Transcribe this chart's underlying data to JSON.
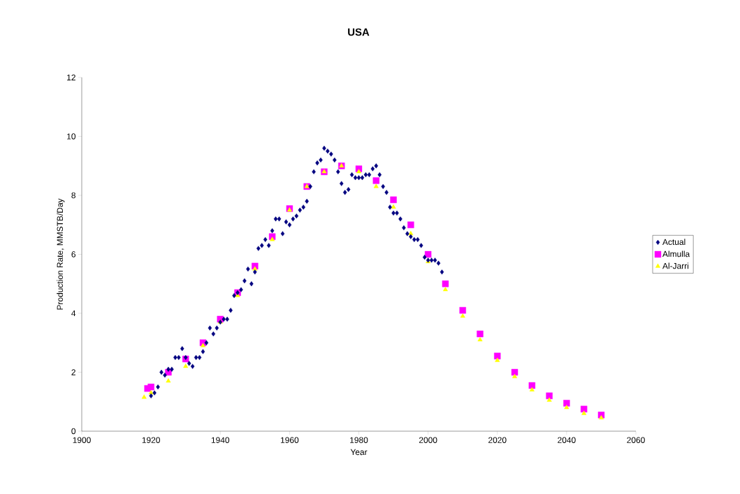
{
  "chart_data": {
    "type": "scatter",
    "title": "USA",
    "xlabel": "Year",
    "ylabel": "Production Rate, MMSTB/Day",
    "xlim": [
      1900,
      2060
    ],
    "xticks": [
      1900,
      1920,
      1940,
      1960,
      1980,
      2000,
      2020,
      2040,
      2060
    ],
    "ylim": [
      0,
      12
    ],
    "yticks": [
      0,
      2,
      4,
      6,
      8,
      10,
      12
    ],
    "grid": false,
    "legend": "right",
    "series": [
      {
        "name": "Actual",
        "color": "#000080",
        "marker": "diamond",
        "x": [
          1920,
          1921,
          1922,
          1923,
          1924,
          1925,
          1926,
          1927,
          1928,
          1929,
          1930,
          1931,
          1932,
          1933,
          1934,
          1935,
          1936,
          1937,
          1938,
          1939,
          1940,
          1941,
          1942,
          1943,
          1944,
          1945,
          1946,
          1947,
          1948,
          1949,
          1950,
          1951,
          1952,
          1953,
          1954,
          1955,
          1956,
          1957,
          1958,
          1959,
          1960,
          1961,
          1962,
          1963,
          1964,
          1965,
          1966,
          1967,
          1968,
          1969,
          1970,
          1971,
          1972,
          1973,
          1974,
          1975,
          1976,
          1977,
          1978,
          1979,
          1980,
          1981,
          1982,
          1983,
          1984,
          1985,
          1986,
          1987,
          1988,
          1989,
          1990,
          1991,
          1992,
          1993,
          1994,
          1995,
          1996,
          1997,
          1998,
          1999,
          2000,
          2001,
          2002,
          2003,
          2004
        ],
        "values": [
          1.2,
          1.3,
          1.5,
          2.0,
          1.9,
          2.1,
          2.1,
          2.5,
          2.5,
          2.8,
          2.5,
          2.3,
          2.2,
          2.5,
          2.5,
          2.7,
          3.0,
          3.5,
          3.3,
          3.5,
          3.7,
          3.8,
          3.8,
          4.1,
          4.6,
          4.7,
          4.8,
          5.1,
          5.5,
          5.0,
          5.4,
          6.2,
          6.3,
          6.5,
          6.3,
          6.8,
          7.2,
          7.2,
          6.7,
          7.1,
          7.0,
          7.2,
          7.3,
          7.5,
          7.6,
          7.8,
          8.3,
          8.8,
          9.1,
          9.2,
          9.6,
          9.5,
          9.4,
          9.2,
          8.8,
          8.4,
          8.1,
          8.2,
          8.7,
          8.6,
          8.6,
          8.6,
          8.7,
          8.7,
          8.9,
          9.0,
          8.7,
          8.3,
          8.1,
          7.6,
          7.4,
          7.4,
          7.2,
          6.9,
          6.7,
          6.6,
          6.5,
          6.5,
          6.3,
          5.9,
          5.8,
          5.8,
          5.8,
          5.7,
          5.4
        ]
      },
      {
        "name": "Almulla",
        "color": "#ff00ff",
        "marker": "square",
        "x": [
          1919,
          1920,
          1925,
          1930,
          1935,
          1940,
          1945,
          1950,
          1955,
          1960,
          1965,
          1970,
          1975,
          1980,
          1985,
          1990,
          1995,
          2000,
          2005,
          2010,
          2015,
          2020,
          2025,
          2030,
          2035,
          2040,
          2045,
          2050
        ],
        "values": [
          1.45,
          1.5,
          2.0,
          2.45,
          3.0,
          3.8,
          4.7,
          5.6,
          6.6,
          7.55,
          8.3,
          8.8,
          9.0,
          8.9,
          8.5,
          7.85,
          7.0,
          6.0,
          5.0,
          4.1,
          3.3,
          2.55,
          2.0,
          1.55,
          1.2,
          0.95,
          0.75,
          0.55
        ]
      },
      {
        "name": "Al-Jarri",
        "color": "#ffff00",
        "marker": "triangle",
        "x": [
          1918,
          1920,
          1925,
          1930,
          1935,
          1940,
          1945,
          1950,
          1955,
          1960,
          1965,
          1970,
          1975,
          1980,
          1985,
          1990,
          1995,
          2000,
          2005,
          2010,
          2015,
          2020,
          2025,
          2030,
          2035,
          2040,
          2045,
          2050
        ],
        "values": [
          1.15,
          1.3,
          1.7,
          2.2,
          2.9,
          3.7,
          4.6,
          5.5,
          6.5,
          7.5,
          8.3,
          8.8,
          9.0,
          8.8,
          8.3,
          7.6,
          6.7,
          5.75,
          4.8,
          3.9,
          3.1,
          2.4,
          1.85,
          1.4,
          1.05,
          0.8,
          0.6,
          0.45
        ]
      }
    ]
  }
}
